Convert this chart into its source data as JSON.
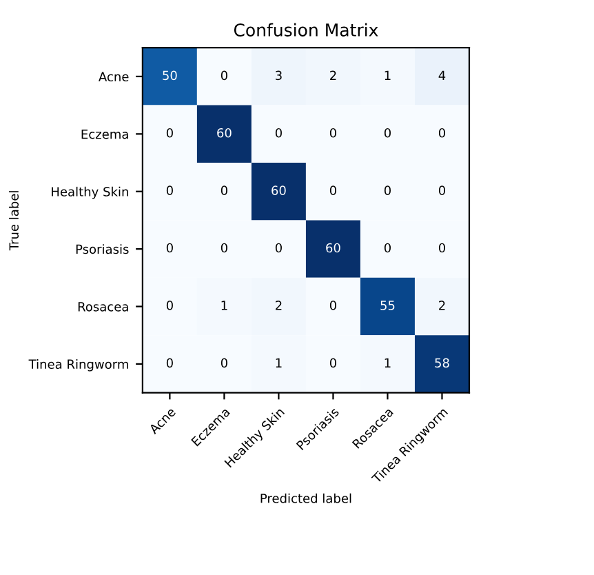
{
  "chart_data": {
    "type": "heatmap",
    "title": "Confusion Matrix",
    "xlabel": "Predicted label",
    "ylabel": "True label",
    "categories": [
      "Acne",
      "Eczema",
      "Healthy Skin",
      "Psoriasis",
      "Rosacea",
      "Tinea Ringworm"
    ],
    "y_categories": [
      "Acne",
      "Eczema",
      "Healthy Skin",
      "Psoriasis",
      "Rosacea",
      "Tinea Ringworm"
    ],
    "cells": [
      [
        50,
        0,
        3,
        2,
        1,
        4
      ],
      [
        0,
        60,
        0,
        0,
        0,
        0
      ],
      [
        0,
        0,
        60,
        0,
        0,
        0
      ],
      [
        0,
        0,
        0,
        60,
        0,
        0
      ],
      [
        0,
        1,
        2,
        0,
        55,
        2
      ],
      [
        0,
        0,
        1,
        0,
        1,
        58
      ]
    ],
    "data_labels": true
  }
}
